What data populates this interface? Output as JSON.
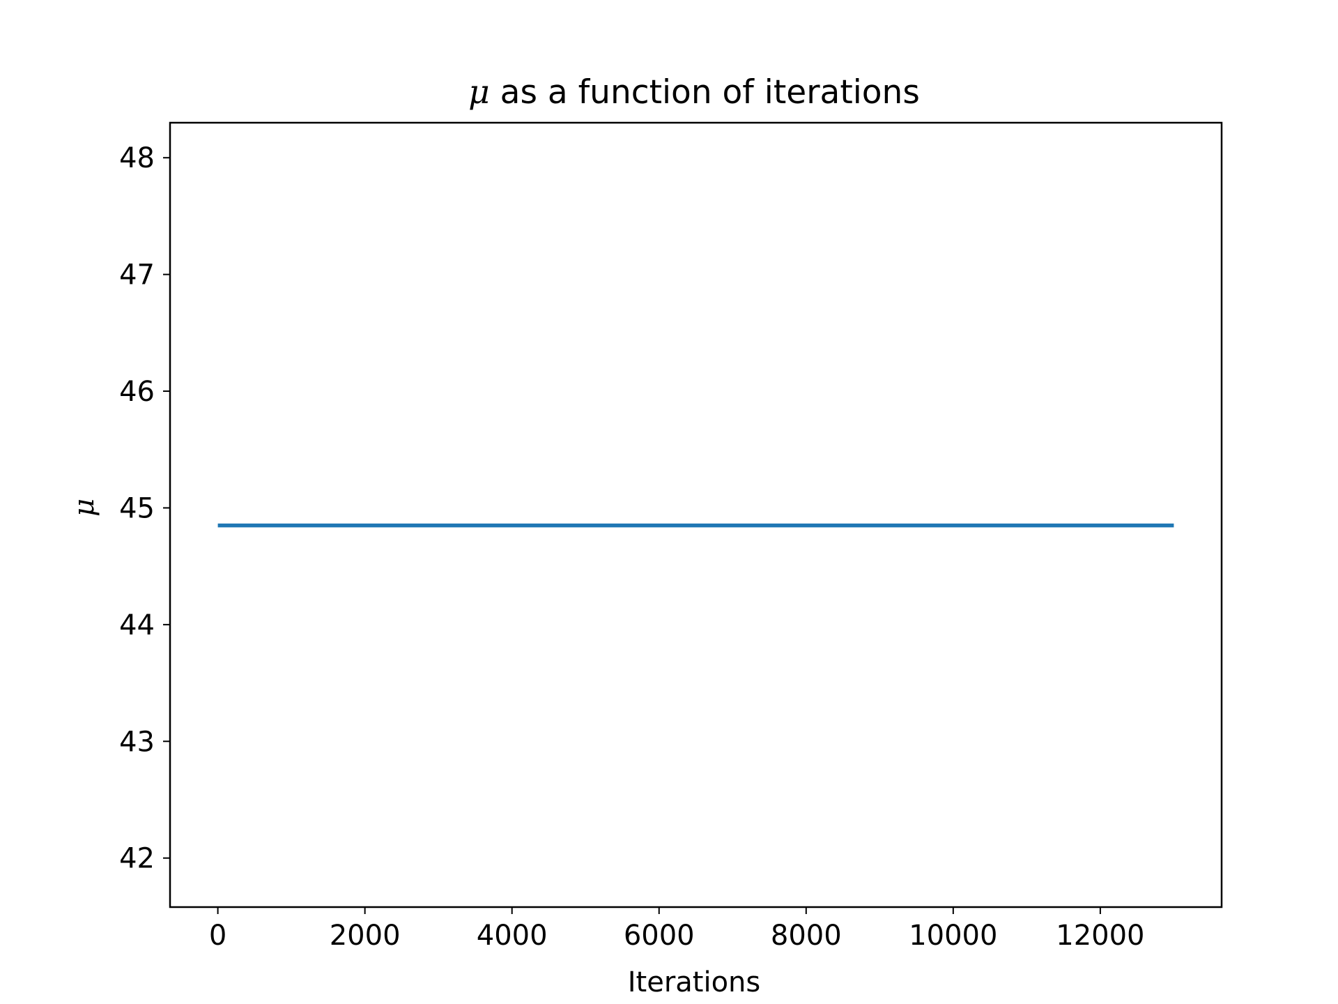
{
  "chart_data": {
    "type": "line",
    "title_symbol": "μ",
    "title_rest": " as a function of iterations",
    "xlabel": "Iterations",
    "ylabel": "μ",
    "xlim": [
      -650,
      13650
    ],
    "ylim": [
      41.58,
      48.3
    ],
    "xticks": [
      0,
      2000,
      4000,
      6000,
      8000,
      10000,
      12000
    ],
    "yticks": [
      42,
      43,
      44,
      45,
      46,
      47,
      48
    ],
    "grid": false,
    "series": [
      {
        "color": "#1f77b4",
        "x": [
          0,
          13000
        ],
        "y": [
          44.85,
          44.85
        ]
      }
    ]
  }
}
